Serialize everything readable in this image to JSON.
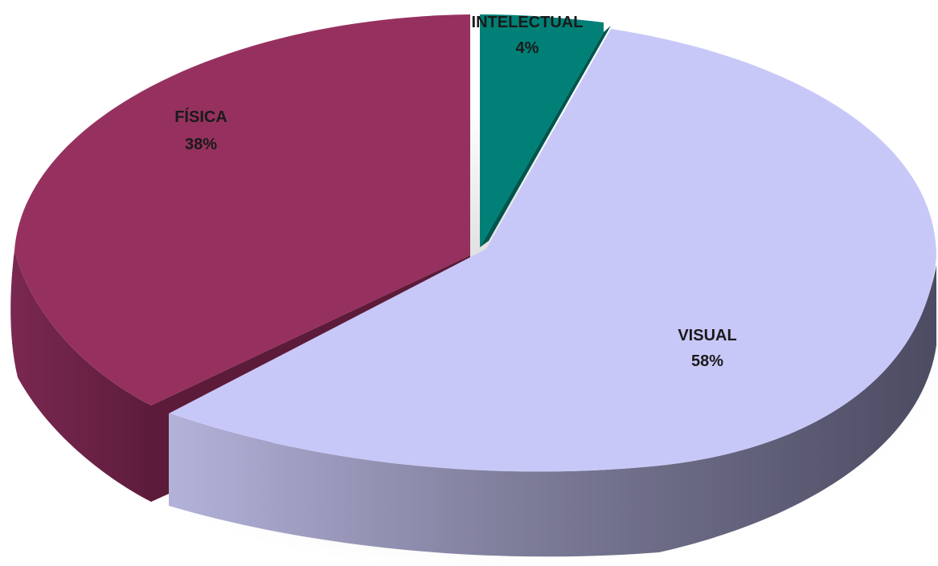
{
  "chart_data": {
    "type": "pie",
    "style": "3d-exploded",
    "slices": [
      {
        "name": "INTELECTUAL",
        "value": 4,
        "label": "4%",
        "color": "#008076",
        "side_color": "#00564f"
      },
      {
        "name": "VISUAL",
        "value": 58,
        "label": "58%",
        "color": "#c8c8f8",
        "side_color": "#6e6d8c"
      },
      {
        "name": "FÍSICA",
        "value": 38,
        "label": "38%",
        "color": "#96315f",
        "side_color": "#6d2345"
      }
    ]
  }
}
